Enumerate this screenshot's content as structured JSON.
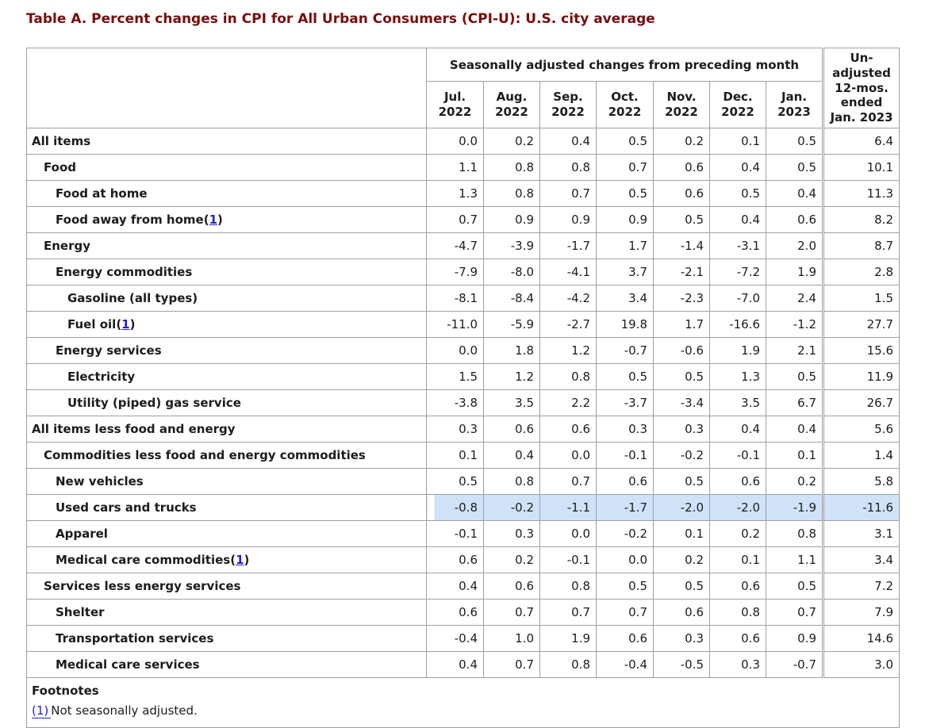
{
  "page": {
    "title": "Table A. Percent changes in CPI for All Urban Consumers (CPI-U): U.S. city average"
  },
  "colors": {
    "title_maroon": "#7a0c0c",
    "link_blue": "#2222cc",
    "highlight_blue": "#cfe2f8",
    "border_gray": "#a0a0a0"
  },
  "table": {
    "paren_open": "(",
    "paren_close": ")",
    "header": {
      "group_label": "Seasonally adjusted changes from preceding month",
      "unadjusted_label": "Un-\nadjusted\n12-mos.\nended\nJan. 2023",
      "months": [
        "Jul.\n2022",
        "Aug.\n2022",
        "Sep.\n2022",
        "Oct.\n2022",
        "Nov.\n2022",
        "Dec.\n2022",
        "Jan.\n2023"
      ]
    },
    "rows": [
      {
        "label": "All items",
        "indent": 0,
        "footnote_ref": null,
        "highlight": false,
        "values": [
          "0.0",
          "0.2",
          "0.4",
          "0.5",
          "0.2",
          "0.1",
          "0.5"
        ],
        "unadjusted": "6.4"
      },
      {
        "label": "Food",
        "indent": 1,
        "footnote_ref": null,
        "highlight": false,
        "values": [
          "1.1",
          "0.8",
          "0.8",
          "0.7",
          "0.6",
          "0.4",
          "0.5"
        ],
        "unadjusted": "10.1"
      },
      {
        "label": "Food at home",
        "indent": 2,
        "footnote_ref": null,
        "highlight": false,
        "values": [
          "1.3",
          "0.8",
          "0.7",
          "0.5",
          "0.6",
          "0.5",
          "0.4"
        ],
        "unadjusted": "11.3"
      },
      {
        "label": "Food away from home",
        "indent": 2,
        "footnote_ref": "1",
        "highlight": false,
        "values": [
          "0.7",
          "0.9",
          "0.9",
          "0.9",
          "0.5",
          "0.4",
          "0.6"
        ],
        "unadjusted": "8.2"
      },
      {
        "label": "Energy",
        "indent": 1,
        "footnote_ref": null,
        "highlight": false,
        "values": [
          "-4.7",
          "-3.9",
          "-1.7",
          "1.7",
          "-1.4",
          "-3.1",
          "2.0"
        ],
        "unadjusted": "8.7"
      },
      {
        "label": "Energy commodities",
        "indent": 2,
        "footnote_ref": null,
        "highlight": false,
        "values": [
          "-7.9",
          "-8.0",
          "-4.1",
          "3.7",
          "-2.1",
          "-7.2",
          "1.9"
        ],
        "unadjusted": "2.8"
      },
      {
        "label": "Gasoline (all types)",
        "indent": 3,
        "footnote_ref": null,
        "highlight": false,
        "values": [
          "-8.1",
          "-8.4",
          "-4.2",
          "3.4",
          "-2.3",
          "-7.0",
          "2.4"
        ],
        "unadjusted": "1.5"
      },
      {
        "label": "Fuel oil",
        "indent": 3,
        "footnote_ref": "1",
        "highlight": false,
        "values": [
          "-11.0",
          "-5.9",
          "-2.7",
          "19.8",
          "1.7",
          "-16.6",
          "-1.2"
        ],
        "unadjusted": "27.7"
      },
      {
        "label": "Energy services",
        "indent": 2,
        "footnote_ref": null,
        "highlight": false,
        "values": [
          "0.0",
          "1.8",
          "1.2",
          "-0.7",
          "-0.6",
          "1.9",
          "2.1"
        ],
        "unadjusted": "15.6"
      },
      {
        "label": "Electricity",
        "indent": 3,
        "footnote_ref": null,
        "highlight": false,
        "values": [
          "1.5",
          "1.2",
          "0.8",
          "0.5",
          "0.5",
          "1.3",
          "0.5"
        ],
        "unadjusted": "11.9"
      },
      {
        "label": "Utility (piped) gas service",
        "indent": 3,
        "footnote_ref": null,
        "highlight": false,
        "values": [
          "-3.8",
          "3.5",
          "2.2",
          "-3.7",
          "-3.4",
          "3.5",
          "6.7"
        ],
        "unadjusted": "26.7"
      },
      {
        "label": "All items less food and energy",
        "indent": 0,
        "footnote_ref": null,
        "highlight": false,
        "values": [
          "0.3",
          "0.6",
          "0.6",
          "0.3",
          "0.3",
          "0.4",
          "0.4"
        ],
        "unadjusted": "5.6"
      },
      {
        "label": "Commodities less food and energy commodities",
        "indent": 1,
        "footnote_ref": null,
        "highlight": false,
        "values": [
          "0.1",
          "0.4",
          "0.0",
          "-0.1",
          "-0.2",
          "-0.1",
          "0.1"
        ],
        "unadjusted": "1.4"
      },
      {
        "label": "New vehicles",
        "indent": 2,
        "footnote_ref": null,
        "highlight": false,
        "values": [
          "0.5",
          "0.8",
          "0.7",
          "0.6",
          "0.5",
          "0.6",
          "0.2"
        ],
        "unadjusted": "5.8"
      },
      {
        "label": "Used cars and trucks",
        "indent": 2,
        "footnote_ref": null,
        "highlight": true,
        "values": [
          "-0.8",
          "-0.2",
          "-1.1",
          "-1.7",
          "-2.0",
          "-2.0",
          "-1.9"
        ],
        "unadjusted": "-11.6"
      },
      {
        "label": "Apparel",
        "indent": 2,
        "footnote_ref": null,
        "highlight": false,
        "values": [
          "-0.1",
          "0.3",
          "0.0",
          "-0.2",
          "0.1",
          "0.2",
          "0.8"
        ],
        "unadjusted": "3.1"
      },
      {
        "label": "Medical care commodities",
        "indent": 2,
        "footnote_ref": "1",
        "highlight": false,
        "values": [
          "0.6",
          "0.2",
          "-0.1",
          "0.0",
          "0.2",
          "0.1",
          "1.1"
        ],
        "unadjusted": "3.4"
      },
      {
        "label": "Services less energy services",
        "indent": 1,
        "footnote_ref": null,
        "highlight": false,
        "values": [
          "0.4",
          "0.6",
          "0.8",
          "0.5",
          "0.5",
          "0.6",
          "0.5"
        ],
        "unadjusted": "7.2"
      },
      {
        "label": "Shelter",
        "indent": 2,
        "footnote_ref": null,
        "highlight": false,
        "values": [
          "0.6",
          "0.7",
          "0.7",
          "0.7",
          "0.6",
          "0.8",
          "0.7"
        ],
        "unadjusted": "7.9"
      },
      {
        "label": "Transportation services",
        "indent": 2,
        "footnote_ref": null,
        "highlight": false,
        "values": [
          "-0.4",
          "1.0",
          "1.9",
          "0.6",
          "0.3",
          "0.6",
          "0.9"
        ],
        "unadjusted": "14.6"
      },
      {
        "label": "Medical care services",
        "indent": 2,
        "footnote_ref": null,
        "highlight": false,
        "values": [
          "0.4",
          "0.7",
          "0.8",
          "-0.4",
          "-0.5",
          "0.3",
          "-0.7"
        ],
        "unadjusted": "3.0"
      }
    ],
    "footnotes": {
      "heading": "Footnotes",
      "items": [
        {
          "ref": "(1)",
          "text": "Not seasonally adjusted."
        }
      ]
    }
  }
}
